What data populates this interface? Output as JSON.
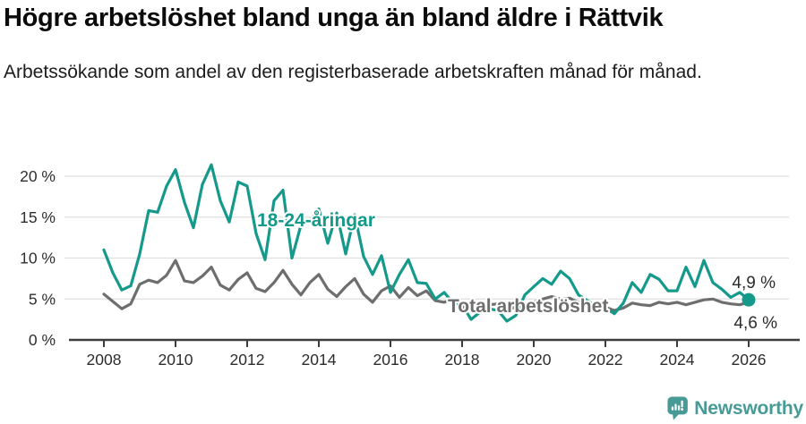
{
  "header": {
    "title": "Högre arbetslöshet bland unga än bland äldre i Rättvik",
    "subtitle": "Arbetssökande som andel av den registerbaserade arbetskraften månad för månad."
  },
  "chart_data": {
    "type": "line",
    "title": "Högre arbetslöshet bland unga än bland äldre i Rättvik",
    "subtitle": "Arbetssökande som andel av den registerbaserade arbetskraften månad för månad.",
    "unit": "%",
    "x_start": 2008,
    "x_step_years": 0.25,
    "xlim": [
      2007.0,
      2027.4
    ],
    "ylim": [
      0,
      22
    ],
    "grid": "horizontal",
    "x_tick_labels": [
      "2008",
      "2010",
      "2012",
      "2014",
      "2016",
      "2018",
      "2020",
      "2022",
      "2024",
      "2026"
    ],
    "y_ticks": [
      0,
      5,
      10,
      15,
      20
    ],
    "y_tick_labels": [
      "0 %",
      "5 %",
      "10 %",
      "15 %",
      "20 %"
    ],
    "series": [
      {
        "name": "18-24-åringar",
        "color": "#14998b",
        "end_label": "4,9 %",
        "end_value": 4.9,
        "end_dot": true,
        "values": [
          11.0,
          8.2,
          6.1,
          6.6,
          10.5,
          15.8,
          15.6,
          18.8,
          20.8,
          16.8,
          13.7,
          19.0,
          21.4,
          17.0,
          14.4,
          19.3,
          18.8,
          13.0,
          9.8,
          17.0,
          18.3,
          10.0,
          14.0,
          14.5,
          16.0,
          11.8,
          15.5,
          10.5,
          15.3,
          10.2,
          8.0,
          10.3,
          5.8,
          8.0,
          9.8,
          7.0,
          6.9,
          5.0,
          5.8,
          4.5,
          4.3,
          2.5,
          3.4,
          3.8,
          3.6,
          2.3,
          3.0,
          5.5,
          6.5,
          7.5,
          6.8,
          8.4,
          7.5,
          5.5,
          4.8,
          4.0,
          3.9,
          3.2,
          4.5,
          7.0,
          5.8,
          8.0,
          7.4,
          6.0,
          6.0,
          8.9,
          6.5,
          9.7,
          7.0,
          6.2,
          5.2,
          5.8,
          4.9
        ]
      },
      {
        "name": "Total arbetslöshet",
        "color": "#6e6e6e",
        "end_label": "4,6 %",
        "end_value": 4.6,
        "end_dot": false,
        "values": [
          5.6,
          4.7,
          3.8,
          4.4,
          6.8,
          7.3,
          7.0,
          7.9,
          9.7,
          7.2,
          7.0,
          7.8,
          8.9,
          6.7,
          6.1,
          7.4,
          8.2,
          6.3,
          5.9,
          7.0,
          8.5,
          6.8,
          5.5,
          7.0,
          8.0,
          6.2,
          5.3,
          6.5,
          7.5,
          5.6,
          4.6,
          6.0,
          6.6,
          5.2,
          6.4,
          5.4,
          6.0,
          4.8,
          4.6,
          5.0,
          4.6,
          3.9,
          4.2,
          4.3,
          4.4,
          3.7,
          4.0,
          4.3,
          4.6,
          5.0,
          5.3,
          5.0,
          5.1,
          4.6,
          4.3,
          4.1,
          4.0,
          3.6,
          3.9,
          4.5,
          4.3,
          4.2,
          4.6,
          4.4,
          4.6,
          4.3,
          4.6,
          4.9,
          5.0,
          4.6,
          4.4,
          4.3,
          4.6
        ]
      }
    ]
  },
  "footer": {
    "brand": "Newsworthy",
    "brand_color": "#479a96",
    "logo_icon": "bar-chart-speech-bubble"
  }
}
